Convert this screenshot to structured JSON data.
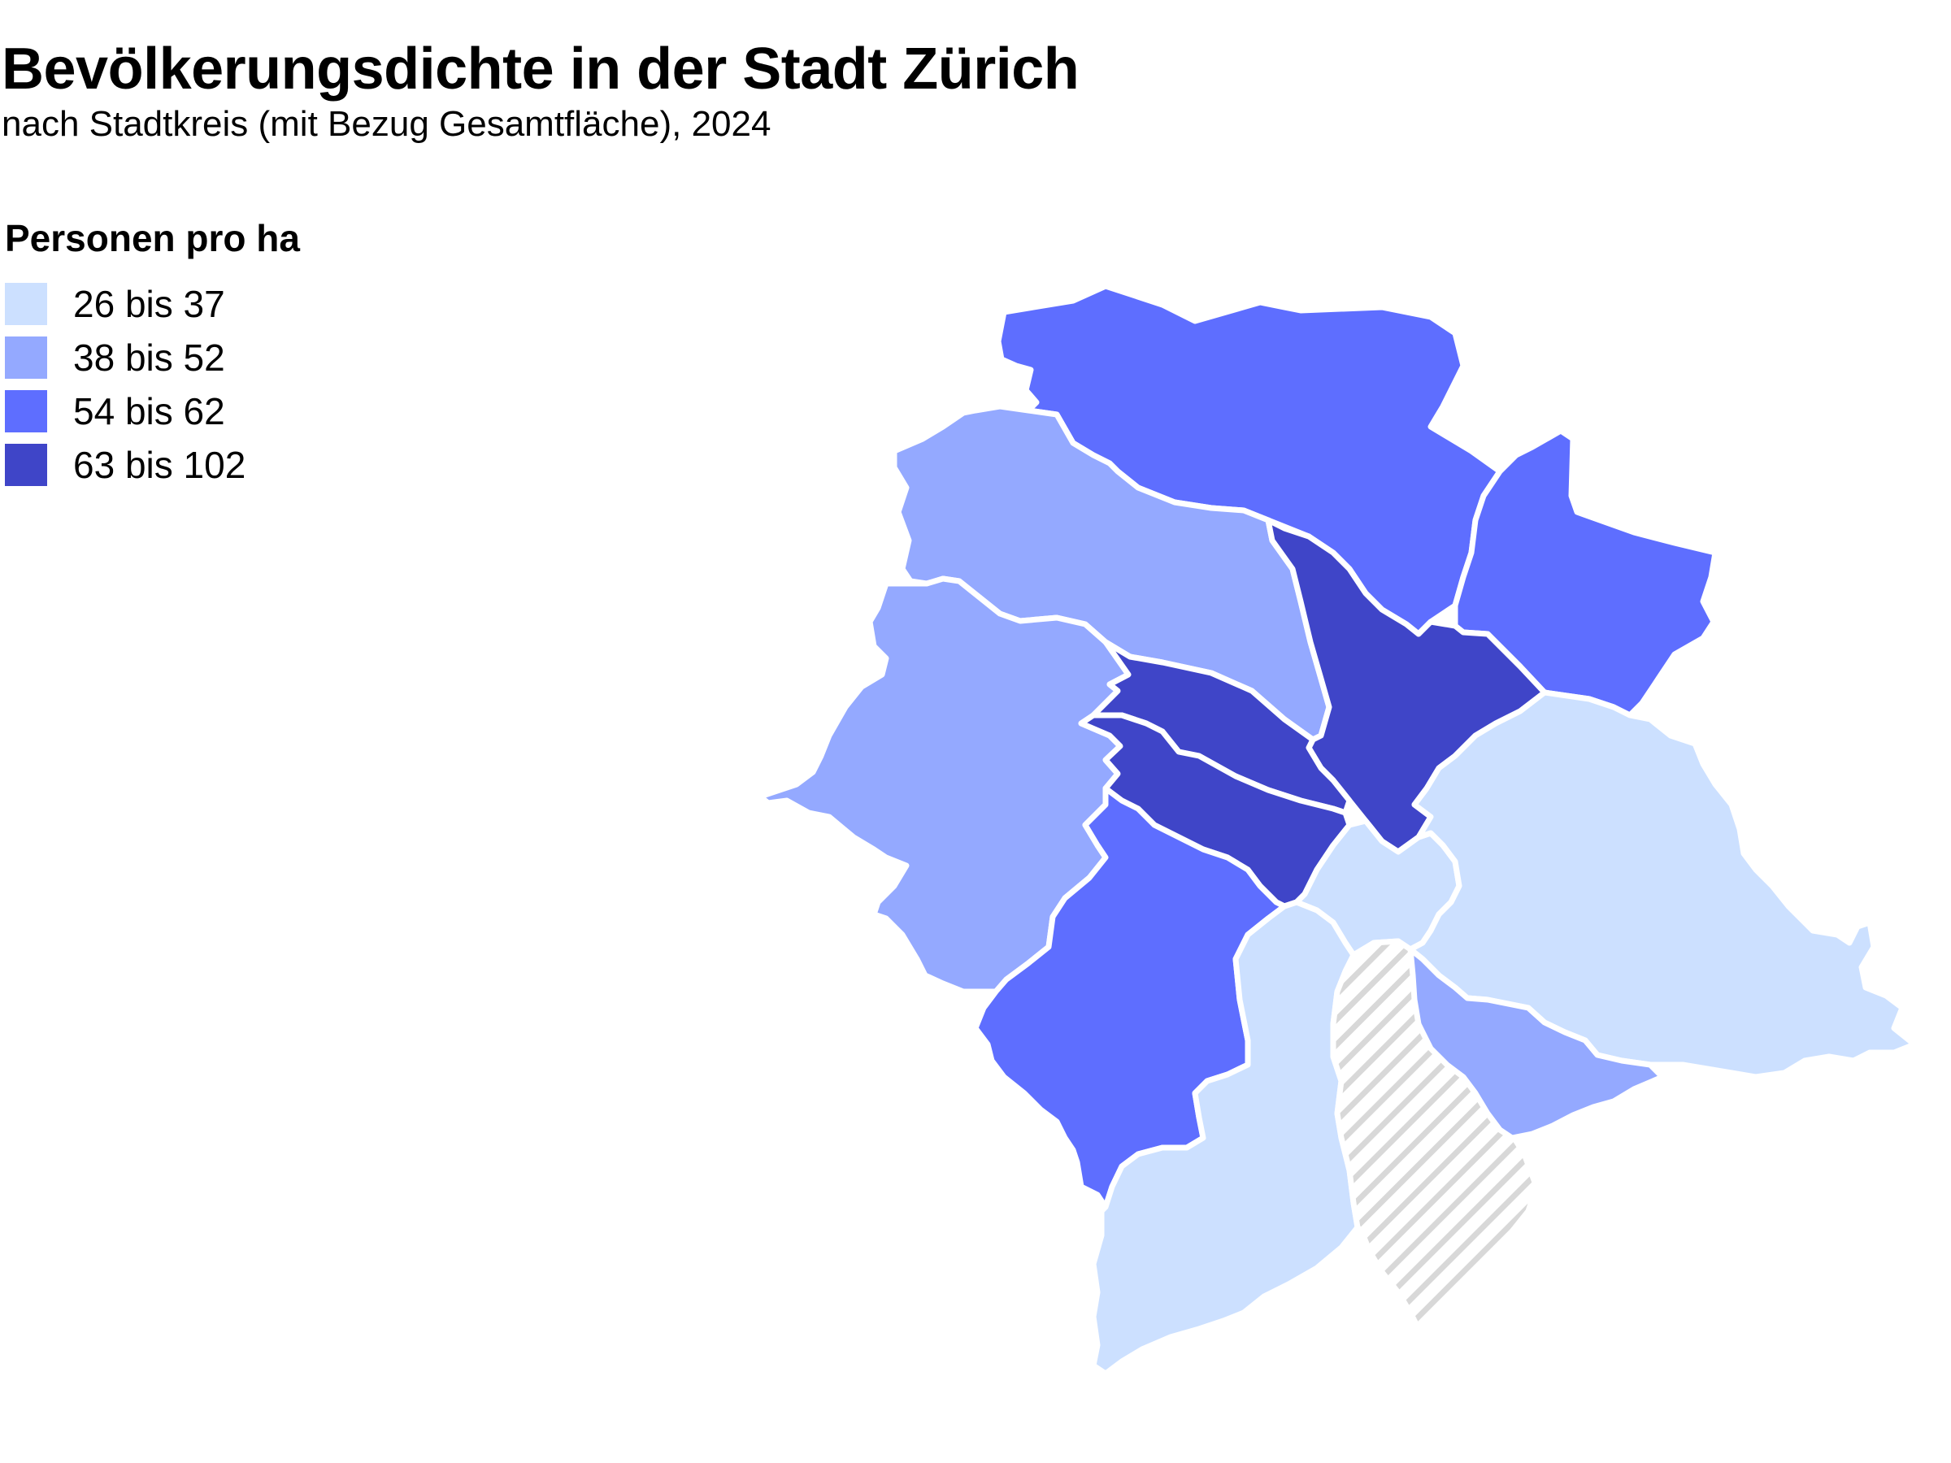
{
  "title": "Bevölkerungsdichte in der Stadt Zürich",
  "subtitle": "nach Stadtkreis (mit Bezug Gesamtfläche), 2024",
  "legend": {
    "title": "Personen pro ha",
    "items": [
      {
        "label": "26 bis 37",
        "color": "#cce0ff"
      },
      {
        "label": "38 bis 52",
        "color": "#94a9ff"
      },
      {
        "label": "54 bis 62",
        "color": "#5e6eff"
      },
      {
        "label": "63 bis 102",
        "color": "#3f45c8"
      }
    ]
  },
  "colors": {
    "no_data_pattern": "#d8d8d8",
    "boundary": "#ffffff"
  },
  "map": {
    "type": "choropleth",
    "districts": [
      {
        "id": "nord",
        "class": "54 bis 62"
      },
      {
        "id": "nordost",
        "class": "54 bis 62"
      },
      {
        "id": "nordwest",
        "class": "38 bis 52"
      },
      {
        "id": "west",
        "class": "38 bis 52"
      },
      {
        "id": "zentrum-nord",
        "class": "63 bis 102"
      },
      {
        "id": "zentrum-west-a",
        "class": "63 bis 102"
      },
      {
        "id": "zentrum-west-b",
        "class": "63 bis 102"
      },
      {
        "id": "altstadt",
        "class": "26 bis 37"
      },
      {
        "id": "ost",
        "class": "26 bis 37"
      },
      {
        "id": "suedwest",
        "class": "54 bis 62"
      },
      {
        "id": "sued",
        "class": "26 bis 37"
      },
      {
        "id": "see",
        "class": "no data"
      },
      {
        "id": "suedost",
        "class": "38 bis 52"
      }
    ]
  }
}
